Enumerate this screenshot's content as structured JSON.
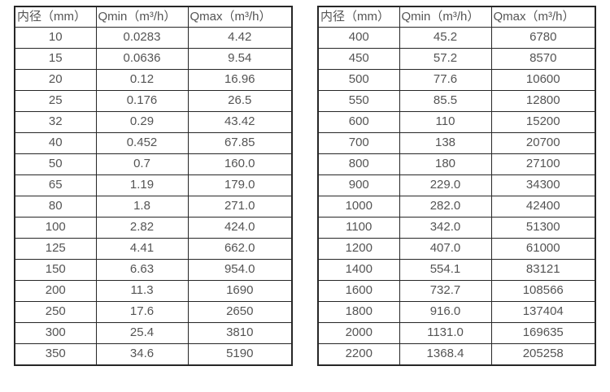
{
  "colors": {
    "border": "#262626",
    "text": "#545454",
    "background": "#ffffff"
  },
  "chart_data": [
    {
      "type": "table",
      "columns": [
        "内径（mm）",
        "Qmin（m³/h）",
        "Qmax（m³/h）"
      ],
      "rows": [
        [
          "10",
          "0.0283",
          "4.42"
        ],
        [
          "15",
          "0.0636",
          "9.54"
        ],
        [
          "20",
          "0.12",
          "16.96"
        ],
        [
          "25",
          "0.176",
          "26.5"
        ],
        [
          "32",
          "0.29",
          "43.42"
        ],
        [
          "40",
          "0.452",
          "67.85"
        ],
        [
          "50",
          "0.7",
          "160.0"
        ],
        [
          "65",
          "1.19",
          "179.0"
        ],
        [
          "80",
          "1.8",
          "271.0"
        ],
        [
          "100",
          "2.82",
          "424.0"
        ],
        [
          "125",
          "4.41",
          "662.0"
        ],
        [
          "150",
          "6.63",
          "954.0"
        ],
        [
          "200",
          "11.3",
          "1690"
        ],
        [
          "250",
          "17.6",
          "2650"
        ],
        [
          "300",
          "25.4",
          "3810"
        ],
        [
          "350",
          "34.6",
          "5190"
        ]
      ]
    },
    {
      "type": "table",
      "columns": [
        "内径（mm）",
        "Qmin（m³/h）",
        "Qmax（m³/h）"
      ],
      "rows": [
        [
          "400",
          "45.2",
          "6780"
        ],
        [
          "450",
          "57.2",
          "8570"
        ],
        [
          "500",
          "77.6",
          "10600"
        ],
        [
          "550",
          "85.5",
          "12800"
        ],
        [
          "600",
          "110",
          "15200"
        ],
        [
          "700",
          "138",
          "20700"
        ],
        [
          "800",
          "180",
          "27100"
        ],
        [
          "900",
          "229.0",
          "34300"
        ],
        [
          "1000",
          "282.0",
          "42400"
        ],
        [
          "1100",
          "342.0",
          "51300"
        ],
        [
          "1200",
          "407.0",
          "61000"
        ],
        [
          "1400",
          "554.1",
          "83121"
        ],
        [
          "1600",
          "732.7",
          "108566"
        ],
        [
          "1800",
          "916.0",
          "137404"
        ],
        [
          "2000",
          "1131.0",
          "169635"
        ],
        [
          "2200",
          "1368.4",
          "205258"
        ]
      ]
    }
  ]
}
